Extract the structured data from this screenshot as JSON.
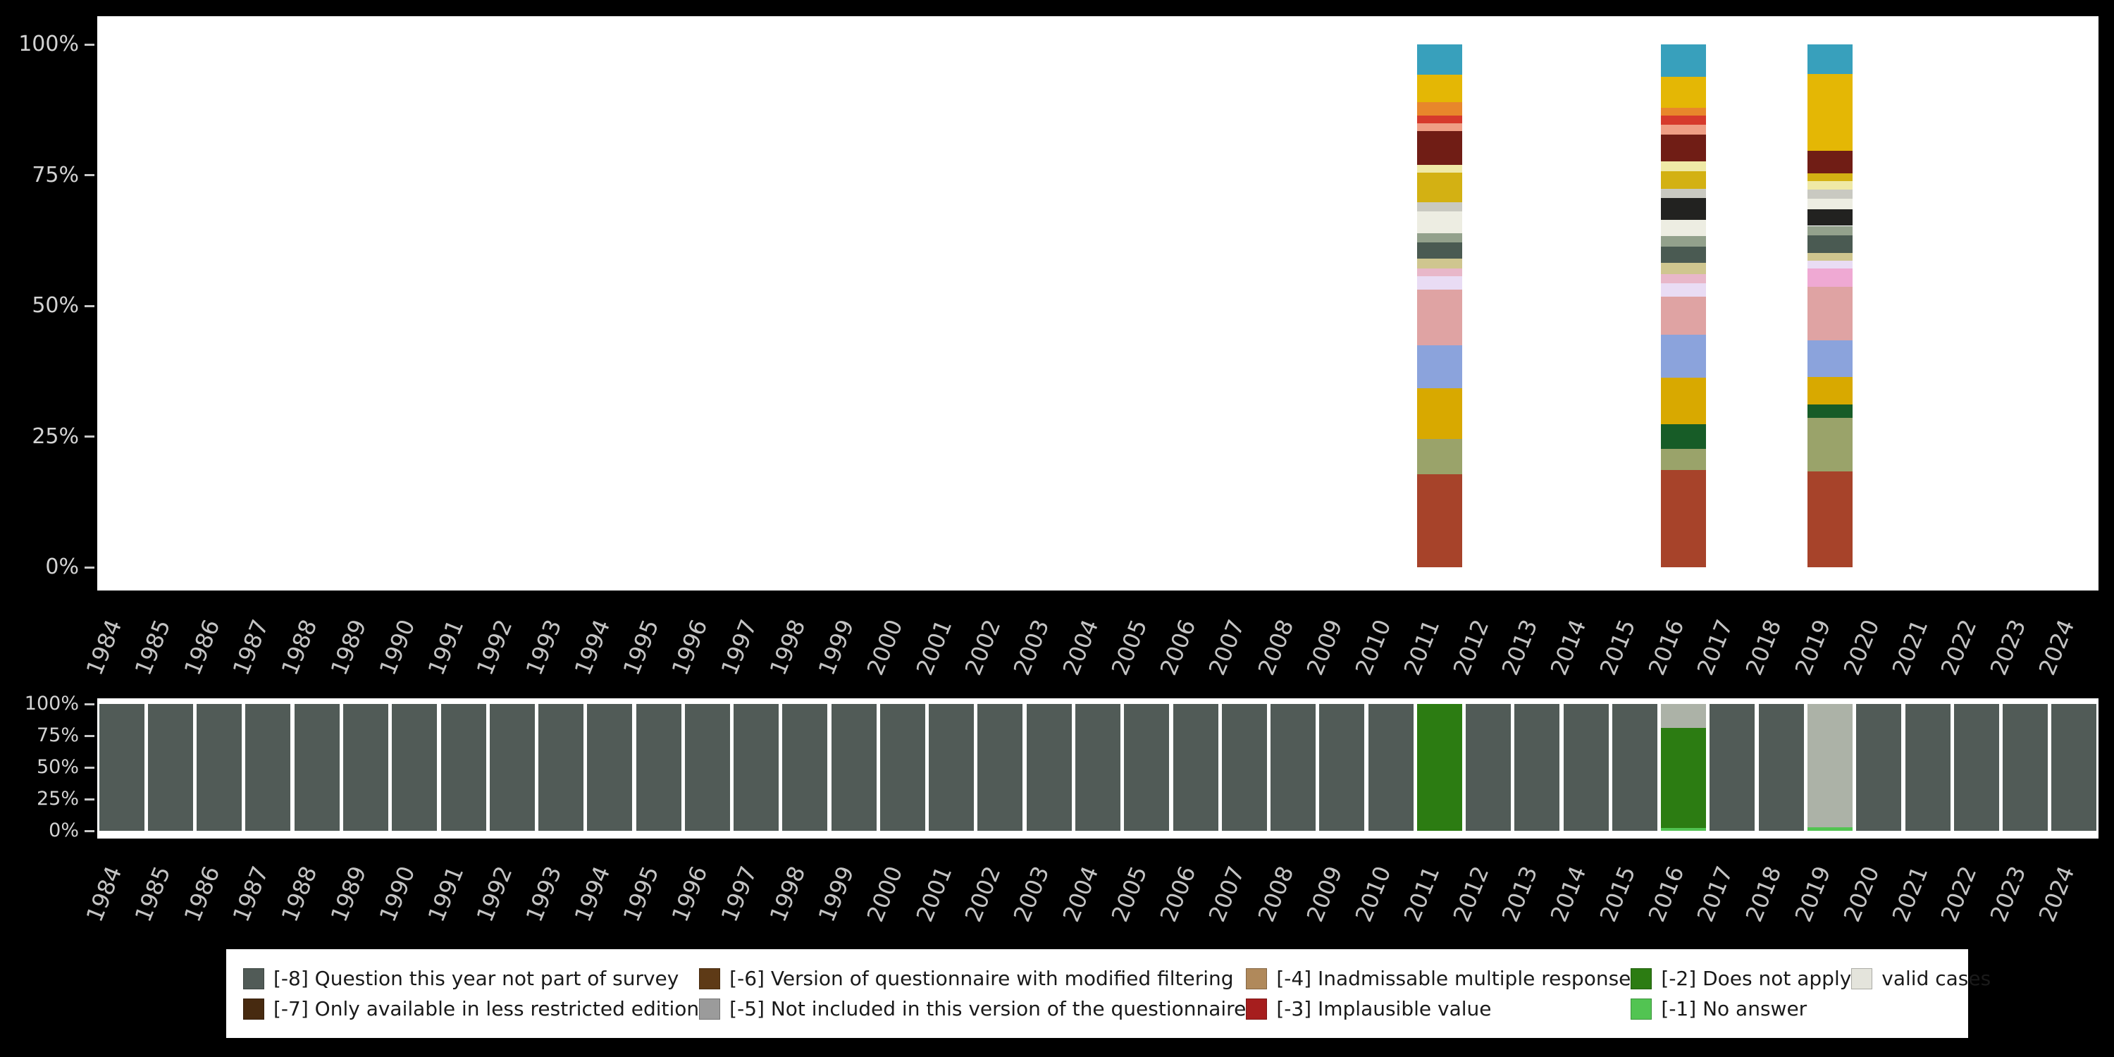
{
  "page": {
    "background": "#000000"
  },
  "axis": {
    "years": [
      "1984",
      "1985",
      "1986",
      "1987",
      "1988",
      "1989",
      "1990",
      "1991",
      "1992",
      "1993",
      "1994",
      "1995",
      "1996",
      "1997",
      "1998",
      "1999",
      "2000",
      "2001",
      "2002",
      "2003",
      "2004",
      "2005",
      "2006",
      "2007",
      "2008",
      "2009",
      "2010",
      "2011",
      "2012",
      "2013",
      "2014",
      "2015",
      "2016",
      "2017",
      "2018",
      "2019",
      "2020",
      "2021",
      "2022",
      "2023",
      "2024"
    ],
    "percent_ticks": [
      "100%",
      "75%",
      "50%",
      "25%",
      "0%"
    ]
  },
  "legend": {
    "items": [
      {
        "label": "[-8] Question this year not part of survey",
        "color": "#515B57",
        "row": 1,
        "col": 1
      },
      {
        "label": "[-7] Only available in less restricted edition",
        "color": "#472A10",
        "row": 2,
        "col": 1
      },
      {
        "label": "[-6] Version of questionnaire with modified filtering",
        "color": "#5E3A16",
        "row": 1,
        "col": 2
      },
      {
        "label": "[-5] Not included in this version of the questionnaire",
        "color": "#9B9B9B",
        "row": 2,
        "col": 2
      },
      {
        "label": "[-4] Inadmissable multiple response",
        "color": "#B0895B",
        "row": 1,
        "col": 3
      },
      {
        "label": "[-3] Implausible value",
        "color": "#A61E1E",
        "row": 2,
        "col": 3
      },
      {
        "label": "[-2] Does not apply",
        "color": "#2C7C12",
        "row": 1,
        "col": 4
      },
      {
        "label": "[-1] No answer",
        "color": "#52C452",
        "row": 2,
        "col": 4
      },
      {
        "label": "valid cases",
        "color": "#E4E4DC",
        "row": 1,
        "col": 5
      }
    ]
  },
  "chart_data": [
    {
      "type": "bar",
      "stacked": true,
      "panel": "answer-distribution",
      "segments_order": "bottom-to-top",
      "ylim": [
        0,
        100
      ],
      "yticks": [
        "0%",
        "25%",
        "50%",
        "75%",
        "100%"
      ],
      "categories_axis": "years 1984-2024; only 2011, 2016 and 2019 contain bars",
      "bars": {
        "2011": [
          {
            "color": "#A7432A",
            "pct": 17.8
          },
          {
            "color": "#9AA36A",
            "pct": 6.7
          },
          {
            "color": "#D8A900",
            "pct": 9.8
          },
          {
            "color": "#8BA3DC",
            "pct": 8.2
          },
          {
            "color": "#DFA3A3",
            "pct": 10.6
          },
          {
            "color": "#E9DCF4",
            "pct": 2.6
          },
          {
            "color": "#E8B7C9",
            "pct": 1.5
          },
          {
            "color": "#CFC68F",
            "pct": 1.8
          },
          {
            "color": "#4A5A52",
            "pct": 3.1
          },
          {
            "color": "#93A18C",
            "pct": 1.8
          },
          {
            "color": "#EDEDE2",
            "pct": 4.1
          },
          {
            "color": "#C9C9C1",
            "pct": 1.8
          },
          {
            "color": "#D3B113",
            "pct": 5.7
          },
          {
            "color": "#EFE9A6",
            "pct": 1.5
          },
          {
            "color": "#701D15",
            "pct": 6.4
          },
          {
            "color": "#EF9E85",
            "pct": 1.5
          },
          {
            "color": "#D63A2C",
            "pct": 1.5
          },
          {
            "color": "#E8872B",
            "pct": 2.6
          },
          {
            "color": "#E4B705",
            "pct": 5.2
          },
          {
            "color": "#38A0BC",
            "pct": 5.8
          }
        ],
        "2016": [
          {
            "color": "#A7432A",
            "pct": 18.6
          },
          {
            "color": "#9AA36A",
            "pct": 4.1
          },
          {
            "color": "#175C27",
            "pct": 4.6
          },
          {
            "color": "#D8A900",
            "pct": 9.0
          },
          {
            "color": "#8BA3DC",
            "pct": 8.2
          },
          {
            "color": "#DFA3A3",
            "pct": 7.2
          },
          {
            "color": "#E9DCF4",
            "pct": 2.6
          },
          {
            "color": "#E8B7C9",
            "pct": 1.8
          },
          {
            "color": "#CFC68F",
            "pct": 2.1
          },
          {
            "color": "#4A5A52",
            "pct": 3.1
          },
          {
            "color": "#93A18C",
            "pct": 2.1
          },
          {
            "color": "#EDEDE2",
            "pct": 3.1
          },
          {
            "color": "#222220",
            "pct": 4.1
          },
          {
            "color": "#C9C9C1",
            "pct": 1.8
          },
          {
            "color": "#D3B113",
            "pct": 3.4
          },
          {
            "color": "#EFE9A6",
            "pct": 1.8
          },
          {
            "color": "#701D15",
            "pct": 5.2
          },
          {
            "color": "#EF9E85",
            "pct": 1.8
          },
          {
            "color": "#D63A2C",
            "pct": 1.8
          },
          {
            "color": "#E8872B",
            "pct": 1.5
          },
          {
            "color": "#E4B705",
            "pct": 5.9
          },
          {
            "color": "#38A0BC",
            "pct": 6.2
          }
        ],
        "2019": [
          {
            "color": "#A7432A",
            "pct": 18.3
          },
          {
            "color": "#9AA36A",
            "pct": 10.3
          },
          {
            "color": "#175C27",
            "pct": 2.6
          },
          {
            "color": "#D8A900",
            "pct": 5.2
          },
          {
            "color": "#8BA3DC",
            "pct": 7.0
          },
          {
            "color": "#DFA3A3",
            "pct": 10.3
          },
          {
            "color": "#EFA9D3",
            "pct": 3.4
          },
          {
            "color": "#E9DCF4",
            "pct": 1.5
          },
          {
            "color": "#CFC68F",
            "pct": 1.5
          },
          {
            "color": "#4A5A52",
            "pct": 3.4
          },
          {
            "color": "#93A18C",
            "pct": 1.8
          },
          {
            "color": "#222220",
            "pct": 3.1
          },
          {
            "color": "#EDEDE2",
            "pct": 2.1
          },
          {
            "color": "#C9C9C1",
            "pct": 1.8
          },
          {
            "color": "#EFE9A6",
            "pct": 1.5
          },
          {
            "color": "#D3B113",
            "pct": 1.5
          },
          {
            "color": "#701D15",
            "pct": 4.4
          },
          {
            "color": "#E4B705",
            "pct": 14.6
          },
          {
            "color": "#38A0BC",
            "pct": 5.7
          }
        ]
      }
    },
    {
      "type": "bar",
      "stacked": true,
      "panel": "missing-overview",
      "segments_order": "bottom-to-top",
      "ylim": [
        0,
        100
      ],
      "yticks": [
        "0%",
        "25%",
        "50%",
        "75%",
        "100%"
      ],
      "default_bar": [
        {
          "category": "[-8] Question this year not part of survey",
          "color": "#515B57",
          "pct": 100
        }
      ],
      "bars": {
        "2011": [
          {
            "category": "[-2] Does not apply",
            "color": "#2C7C12",
            "pct": 100
          }
        ],
        "2016": [
          {
            "category": "[-1] No answer",
            "color": "#52C452",
            "pct": 2
          },
          {
            "category": "[-2] Does not apply",
            "color": "#2C7C12",
            "pct": 79
          },
          {
            "category": "valid cases",
            "color": "#ACB2A7",
            "pct": 19
          }
        ],
        "2019": [
          {
            "category": "[-1] No answer",
            "color": "#52C452",
            "pct": 3
          },
          {
            "category": "valid cases",
            "color": "#ACB2A7",
            "pct": 97
          }
        ]
      }
    }
  ]
}
